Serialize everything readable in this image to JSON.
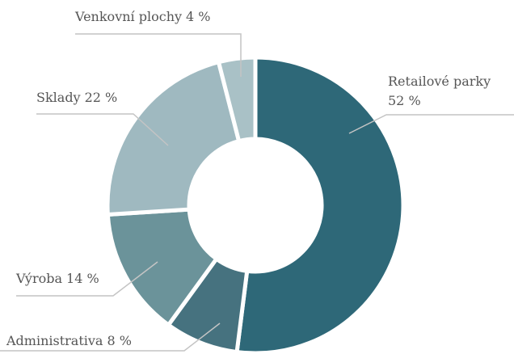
{
  "chart_data": {
    "type": "donut",
    "categories": [
      "Retailové parky",
      "Administrativa",
      "Výroba",
      "Sklady",
      "Venkovní plochy"
    ],
    "values": [
      52,
      8,
      14,
      22,
      4
    ],
    "value_labels": [
      "52 %",
      "8 %",
      "14 %",
      "22 %",
      "4 %"
    ],
    "colors": [
      "#2e6878",
      "#46727f",
      "#6b939a",
      "#9fb9c0",
      "#a9c1c6"
    ]
  }
}
